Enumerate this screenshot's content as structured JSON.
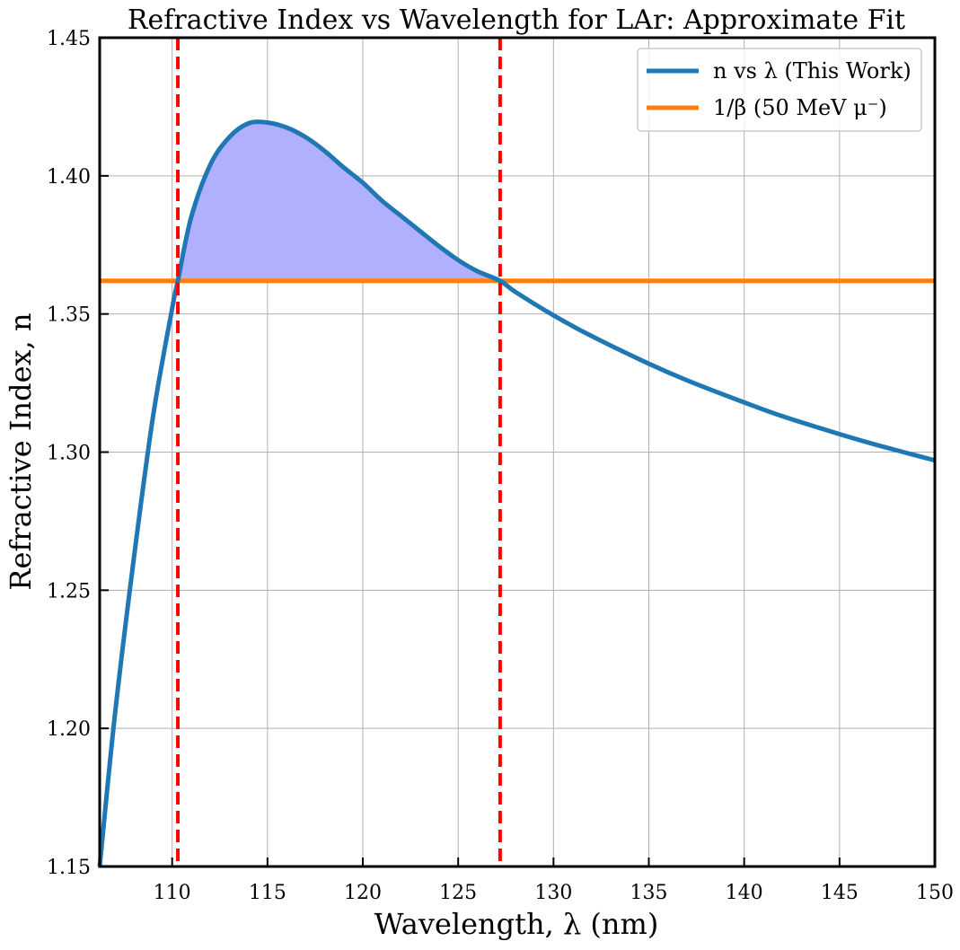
{
  "chart_data": {
    "type": "line",
    "title": "Refractive Index vs Wavelength for LAr: Approximate Fit",
    "xlabel": "Wavelength, λ (nm)",
    "ylabel": "Refractive Index, n",
    "xlim": [
      106.2,
      150
    ],
    "ylim": [
      1.15,
      1.45
    ],
    "xticks": [
      110,
      115,
      120,
      125,
      130,
      135,
      140,
      145,
      150
    ],
    "xtick_labels": [
      "110",
      "115",
      "120",
      "125",
      "130",
      "135",
      "140",
      "145",
      "150"
    ],
    "yticks": [
      1.15,
      1.2,
      1.25,
      1.3,
      1.35,
      1.4,
      1.45
    ],
    "ytick_labels": [
      "1.15",
      "1.20",
      "1.25",
      "1.30",
      "1.35",
      "1.40",
      "1.45"
    ],
    "grid": true,
    "legend_position": "top-right",
    "series": [
      {
        "name": "n vs λ (This Work)",
        "color": "#1f77b4",
        "x": [
          106.2,
          107,
          108,
          109,
          110,
          110.3,
          111,
          112,
          113,
          114,
          115,
          116,
          117,
          118,
          119,
          120,
          121,
          122,
          123,
          124,
          125,
          126,
          127.2,
          128,
          130,
          132,
          135,
          137,
          140,
          142,
          145,
          147,
          150
        ],
        "y": [
          1.15,
          1.205,
          1.262,
          1.313,
          1.352,
          1.362,
          1.385,
          1.404,
          1.414,
          1.419,
          1.4193,
          1.4175,
          1.414,
          1.409,
          1.403,
          1.3975,
          1.391,
          1.3855,
          1.38,
          1.3745,
          1.3695,
          1.3655,
          1.362,
          1.358,
          1.3495,
          1.342,
          1.332,
          1.326,
          1.318,
          1.313,
          1.3065,
          1.3025,
          1.297
        ]
      },
      {
        "name": "1/β (50 MeV μ⁻)",
        "color": "#ff7f0e",
        "x": [
          106.2,
          150
        ],
        "y": [
          1.362,
          1.362
        ]
      }
    ],
    "vertical_lines": [
      {
        "x": 110.3,
        "color": "#ff0000",
        "style": "dashed"
      },
      {
        "x": 127.2,
        "color": "#ff0000",
        "style": "dashed"
      }
    ],
    "fill_between": {
      "x_from": 110.3,
      "x_to": 127.2,
      "lower": 1.362,
      "color": "#b0b0ff"
    }
  }
}
